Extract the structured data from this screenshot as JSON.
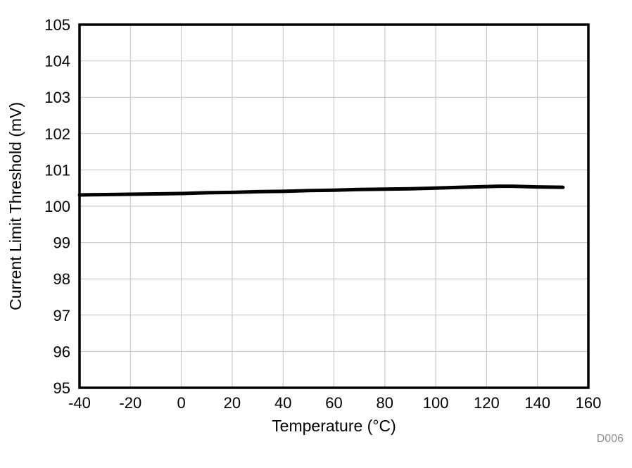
{
  "chart_data": {
    "type": "line",
    "title": "",
    "xlabel": "Temperature (°C)",
    "ylabel": "Current Limit Threshold (mV)",
    "xlim": [
      -40,
      160
    ],
    "ylim": [
      95,
      105
    ],
    "xticks": [
      -40,
      -20,
      0,
      20,
      40,
      60,
      80,
      100,
      120,
      140,
      160
    ],
    "yticks": [
      95,
      96,
      97,
      98,
      99,
      100,
      101,
      102,
      103,
      104,
      105
    ],
    "grid": true,
    "legend": "none",
    "series": [
      {
        "name": "Current Limit Threshold",
        "color": "#000000",
        "x": [
          -40,
          -30,
          -20,
          -10,
          0,
          10,
          20,
          30,
          40,
          50,
          60,
          70,
          80,
          90,
          100,
          110,
          120,
          125,
          130,
          140,
          150
        ],
        "y": [
          100.31,
          100.32,
          100.33,
          100.34,
          100.35,
          100.37,
          100.38,
          100.4,
          100.41,
          100.43,
          100.44,
          100.46,
          100.47,
          100.48,
          100.5,
          100.52,
          100.54,
          100.55,
          100.55,
          100.53,
          100.52
        ]
      }
    ],
    "watermark": "D006"
  },
  "colors": {
    "grid": "#c2c2c2",
    "axis": "#000000",
    "line": "#000000",
    "watermark": "#8f8f8f",
    "background": "#ffffff"
  }
}
